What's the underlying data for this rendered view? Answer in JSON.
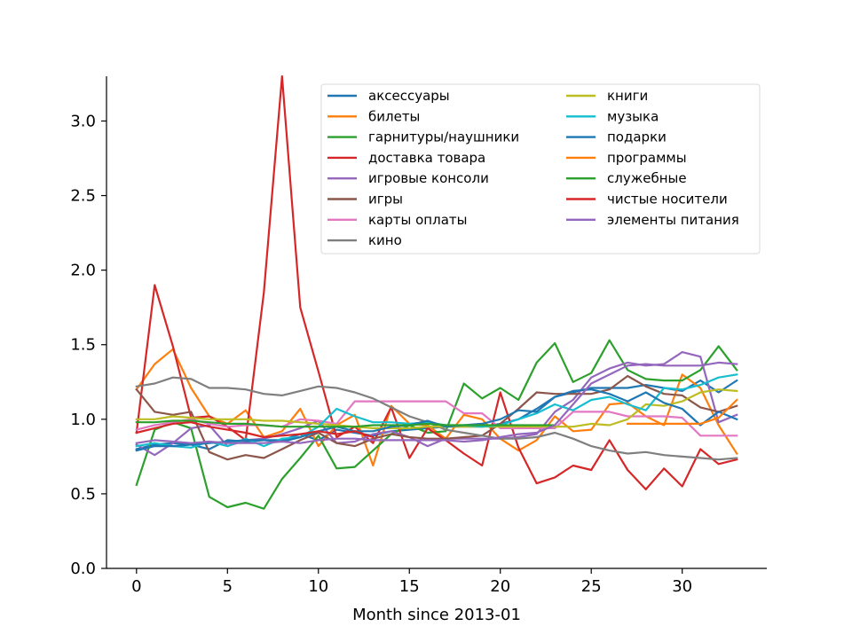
{
  "chart_data": {
    "type": "line",
    "xlabel": "Month since 2013-01",
    "ylabel": "",
    "xlim": [
      -1.65,
      34.65
    ],
    "ylim": [
      0.0,
      3.3
    ],
    "xticks": [
      0,
      5,
      10,
      15,
      20,
      25,
      30
    ],
    "yticks": [
      0.0,
      0.5,
      1.0,
      1.5,
      2.0,
      2.5,
      3.0
    ],
    "grid": false,
    "legend_position": "top-right",
    "legend_columns": 2,
    "series": [
      {
        "name": "аксессуары",
        "color": "#1f77b4",
        "x_start": 0,
        "values": [
          0.8,
          0.83,
          0.84,
          0.83,
          0.8,
          0.86,
          0.85,
          0.86,
          0.86,
          0.9,
          0.86,
          0.93,
          0.91,
          0.89,
          0.92,
          0.93,
          0.94,
          0.95,
          0.95,
          0.95,
          0.97,
          1.0,
          1.07,
          1.15,
          1.18,
          1.21,
          1.21,
          1.21,
          1.23,
          1.21,
          1.19,
          1.26,
          1.18,
          1.26
        ]
      },
      {
        "name": "билеты",
        "color": "#ff7f0e",
        "x_start": 0,
        "values": [
          1.2,
          1.37,
          1.47,
          1.21,
          1.02,
          0.97,
          1.06,
          0.88,
          0.92,
          1.07,
          0.82,
          0.96,
          1.03,
          0.69,
          1.09,
          0.97,
          0.96,
          0.87,
          1.03,
          1.0,
          0.87,
          0.79,
          0.86,
          1.02,
          0.92,
          0.93,
          1.1,
          1.11,
          1.02,
          0.96,
          1.3,
          1.21,
          0.96,
          0.77
        ]
      },
      {
        "name": "гарнитуры/наушники",
        "color": "#2ca02c",
        "x_start": 0,
        "values": [
          0.56,
          0.93,
          0.98,
          0.94,
          0.48,
          0.41,
          0.44,
          0.4,
          0.6,
          0.74,
          0.89,
          0.67,
          0.68,
          0.79,
          0.9,
          0.96,
          0.91,
          0.92,
          1.24,
          1.14,
          1.21,
          1.13,
          1.38,
          1.51,
          1.25,
          1.31,
          1.53,
          1.33,
          1.27,
          1.26,
          1.26,
          1.33,
          1.49,
          1.33
        ]
      },
      {
        "name": "доставка товара",
        "color": "#d62728",
        "x_start": 0,
        "values": [
          0.91,
          1.9,
          1.49,
          1.01,
          1.02,
          0.95,
          0.86,
          1.85,
          3.3,
          1.75,
          1.32,
          0.88,
          0.95,
          0.84,
          1.08,
          0.74,
          0.94,
          0.86,
          0.77,
          0.69,
          1.18,
          0.81,
          0.57,
          0.61,
          0.69,
          0.66,
          0.86,
          0.66,
          0.53,
          0.67,
          0.55,
          0.8,
          0.7,
          0.73
        ]
      },
      {
        "name": "игровые консоли",
        "color": "#9467bd",
        "x_start": 0,
        "values": [
          0.83,
          0.76,
          0.84,
          0.94,
          0.96,
          0.82,
          0.86,
          0.87,
          0.9,
          0.94,
          0.99,
          0.84,
          0.85,
          0.9,
          0.92,
          0.88,
          0.82,
          0.87,
          0.87,
          0.87,
          0.87,
          0.88,
          0.9,
          1.05,
          1.13,
          1.28,
          1.34,
          1.38,
          1.36,
          1.37,
          1.45,
          1.42,
          0.98,
          1.03
        ]
      },
      {
        "name": "игры",
        "color": "#8c564b",
        "x_start": 0,
        "values": [
          1.2,
          1.05,
          1.03,
          1.05,
          0.78,
          0.73,
          0.76,
          0.74,
          0.8,
          0.86,
          0.91,
          0.84,
          0.82,
          0.87,
          0.9,
          0.88,
          0.87,
          0.87,
          0.88,
          0.89,
          0.97,
          1.07,
          1.18,
          1.17,
          1.17,
          1.17,
          1.2,
          1.29,
          1.22,
          1.17,
          1.16,
          1.08,
          1.05,
          1.09
        ]
      },
      {
        "name": "карты оплаты",
        "color": "#e377c2",
        "x_start": 0,
        "values": [
          0.93,
          0.96,
          0.98,
          1.0,
          0.97,
          0.95,
          0.96,
          0.96,
          0.95,
          1.0,
          0.99,
          0.97,
          1.12,
          1.12,
          1.12,
          1.12,
          1.12,
          1.12,
          1.04,
          1.04,
          0.94,
          0.94,
          0.94,
          0.94,
          1.05,
          1.05,
          1.05,
          1.02,
          1.02,
          1.02,
          1.01,
          0.89,
          0.89,
          0.89
        ]
      },
      {
        "name": "кино",
        "color": "#7f7f7f",
        "x_start": 0,
        "values": [
          1.22,
          1.24,
          1.28,
          1.27,
          1.21,
          1.21,
          1.2,
          1.17,
          1.16,
          1.19,
          1.22,
          1.21,
          1.18,
          1.14,
          1.08,
          1.02,
          0.98,
          0.93,
          0.91,
          0.89,
          0.87,
          0.87,
          0.88,
          0.91,
          0.87,
          0.82,
          0.79,
          0.77,
          0.78,
          0.76,
          0.75,
          0.74,
          0.73,
          0.74
        ]
      },
      {
        "name": "книги",
        "color": "#bcbd22",
        "x_start": 0,
        "values": [
          1.0,
          1.0,
          1.02,
          1.01,
          1.0,
          1.0,
          1.0,
          0.99,
          0.99,
          0.98,
          0.97,
          0.96,
          0.95,
          0.94,
          0.94,
          0.94,
          0.95,
          0.95,
          0.95,
          0.95,
          0.95,
          0.95,
          0.95,
          0.95,
          0.95,
          0.97,
          0.96,
          1.0,
          1.1,
          1.09,
          1.12,
          1.18,
          1.2,
          1.19
        ]
      },
      {
        "name": "музыка",
        "color": "#17becf",
        "x_start": 0,
        "values": [
          0.82,
          0.84,
          0.82,
          0.81,
          0.85,
          0.82,
          0.87,
          0.82,
          0.87,
          0.88,
          0.95,
          1.07,
          1.02,
          0.98,
          0.98,
          0.97,
          0.98,
          0.96,
          0.96,
          0.95,
          0.96,
          1.0,
          1.04,
          1.1,
          1.06,
          1.13,
          1.15,
          1.1,
          1.06,
          1.21,
          1.2,
          1.23,
          1.28,
          1.3
        ]
      },
      {
        "name": "подарки",
        "color": "#1f77b4",
        "x_start": 0,
        "values": [
          0.79,
          0.82,
          0.82,
          0.83,
          0.84,
          0.85,
          0.86,
          0.86,
          0.85,
          0.88,
          0.92,
          0.95,
          0.92,
          0.92,
          0.95,
          0.96,
          0.99,
          0.95,
          0.96,
          0.97,
          1.0,
          1.06,
          1.05,
          1.15,
          1.19,
          1.2,
          1.17,
          1.12,
          1.18,
          1.11,
          1.07,
          0.96,
          1.05,
          1.0
        ]
      },
      {
        "name": "программы",
        "color": "#ff7f0e",
        "x_start": 27,
        "values": [
          0.97,
          0.97,
          0.97,
          0.97,
          0.97,
          1.01,
          1.13
        ]
      },
      {
        "name": "служебные",
        "color": "#2ca02c",
        "x_start": 0,
        "values": [
          0.98,
          0.98,
          0.99,
          0.99,
          0.98,
          0.97,
          0.97,
          0.96,
          0.95,
          0.95,
          0.95,
          0.95,
          0.95,
          0.96,
          0.96,
          0.96,
          0.97,
          0.96,
          0.96,
          0.96,
          0.96,
          0.96,
          0.96,
          0.96
        ]
      },
      {
        "name": "чистые носители",
        "color": "#d62728",
        "x_start": 0,
        "values": [
          0.91,
          0.94,
          0.97,
          0.98,
          0.95,
          0.93,
          0.91,
          0.88,
          0.89,
          0.9,
          0.92,
          0.9,
          0.92,
          0.88
        ]
      },
      {
        "name": "элементы питания",
        "color": "#9467bd",
        "x_start": 0,
        "values": [
          0.84,
          0.86,
          0.85,
          0.84,
          0.85,
          0.84,
          0.84,
          0.84,
          0.85,
          0.84,
          0.86,
          0.87,
          0.87,
          0.86,
          0.86,
          0.86,
          0.86,
          0.86,
          0.85,
          0.86,
          0.88,
          0.9,
          0.91,
          0.96,
          1.1,
          1.24,
          1.3,
          1.36,
          1.37,
          1.36,
          1.36,
          1.36,
          1.38,
          1.37
        ]
      }
    ]
  }
}
